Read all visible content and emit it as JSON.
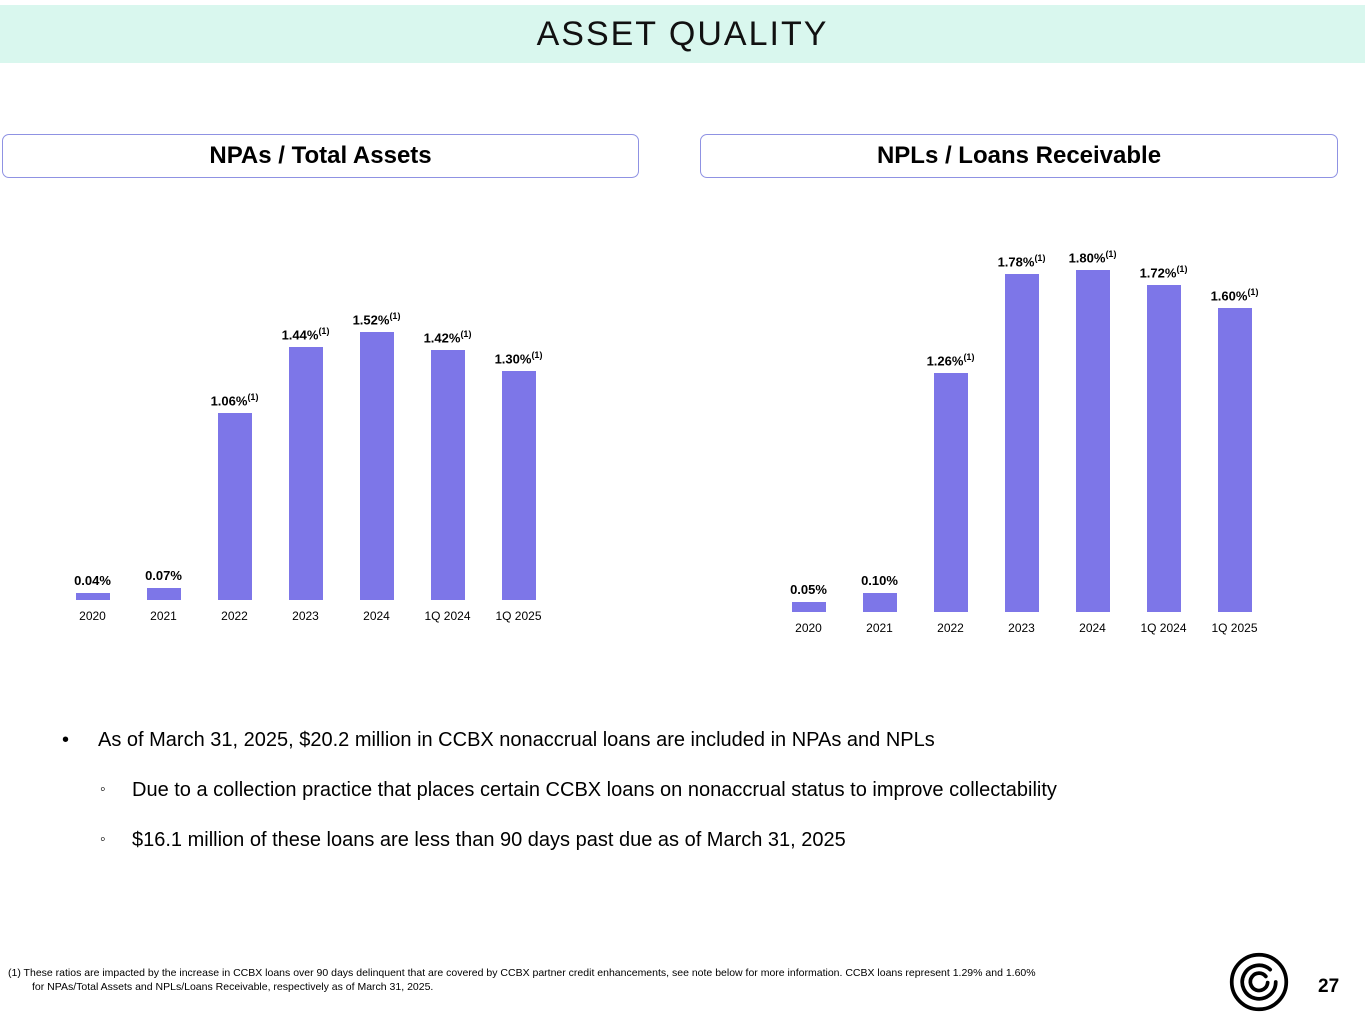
{
  "header": {
    "title": "ASSET QUALITY"
  },
  "chart_data": [
    {
      "type": "bar",
      "title": "NPAs / Total Assets",
      "categories": [
        "2020",
        "2021",
        "2022",
        "2023",
        "2024",
        "1Q 2024",
        "1Q 2025"
      ],
      "values": [
        0.04,
        0.07,
        1.06,
        1.44,
        1.52,
        1.42,
        1.3
      ],
      "value_labels": [
        "0.04%",
        "0.07%",
        "1.06%",
        "1.44%",
        "1.52%",
        "1.42%",
        "1.30%"
      ],
      "footnote_flags": [
        false,
        false,
        true,
        true,
        true,
        true,
        true
      ],
      "footnote_marker": "(1)",
      "ylim": [
        0,
        1.6
      ],
      "bar_color": "#7d76e8",
      "grid": false,
      "legend": "none"
    },
    {
      "type": "bar",
      "title": "NPLs / Loans Receivable",
      "categories": [
        "2020",
        "2021",
        "2022",
        "2023",
        "2024",
        "1Q 2024",
        "1Q 2025"
      ],
      "values": [
        0.05,
        0.1,
        1.26,
        1.78,
        1.8,
        1.72,
        1.6
      ],
      "value_labels": [
        "0.05%",
        "0.10%",
        "1.26%",
        "1.78%",
        "1.80%",
        "1.72%",
        "1.60%"
      ],
      "footnote_flags": [
        false,
        false,
        true,
        true,
        true,
        true,
        true
      ],
      "footnote_marker": "(1)",
      "ylim": [
        0,
        2.0
      ],
      "bar_color": "#7d76e8",
      "grid": false,
      "legend": "none"
    }
  ],
  "bullets": {
    "marker": "•",
    "sub_marker": "◦",
    "main": "As of March 31, 2025, $20.2 million in CCBX nonaccrual loans are included in NPAs and NPLs",
    "sub": [
      "Due to a collection practice that places certain CCBX loans on nonaccrual status to improve collectability",
      "$16.1 million of these loans are less than 90 days past due as of March 31, 2025"
    ]
  },
  "footnote": {
    "line1": "(1) These ratios are impacted by the increase in CCBX loans over 90 days delinquent that are covered by CCBX partner credit enhancements, see note below for more information. CCBX loans represent 1.29% and 1.60%",
    "line2": "for NPAs/Total Assets and NPLs/Loans Receivable, respectively as of March 31, 2025."
  },
  "footer": {
    "page_number": "27",
    "logo_icon": "coastal-spiral-logo"
  },
  "colors": {
    "bar": "#7d76e8",
    "header_bg": "#d9f7ee",
    "title_box_border": "#8f92e3"
  }
}
